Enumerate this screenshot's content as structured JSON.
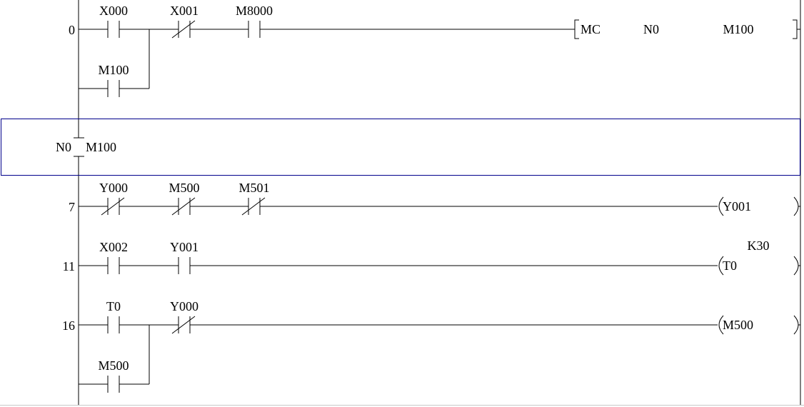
{
  "colors": {
    "line": "#000000",
    "selection": "#00008b",
    "bottom_border": "#c8c8c8"
  },
  "rungs": [
    {
      "step": "0",
      "contacts": [
        {
          "label": "X000",
          "type": "no",
          "col": 0
        },
        {
          "label": "X001",
          "type": "nc",
          "col": 1
        },
        {
          "label": "M8000",
          "type": "no",
          "col": 2
        }
      ],
      "branch": {
        "contacts": [
          {
            "label": "M100",
            "type": "no",
            "col": 0
          }
        ]
      },
      "instruction": {
        "op": "MC",
        "args": [
          "N0",
          "M100"
        ]
      }
    },
    {
      "mc_marker": {
        "nest": "N0",
        "device": "M100"
      },
      "selected": true
    },
    {
      "step": "7",
      "contacts": [
        {
          "label": "Y000",
          "type": "nc",
          "col": 0
        },
        {
          "label": "M500",
          "type": "nc",
          "col": 1
        },
        {
          "label": "M501",
          "type": "nc",
          "col": 2
        }
      ],
      "coil": {
        "device": "Y001"
      }
    },
    {
      "step": "11",
      "contacts": [
        {
          "label": "X002",
          "type": "no",
          "col": 0
        },
        {
          "label": "Y001",
          "type": "no",
          "col": 1
        }
      ],
      "coil": {
        "device": "T0",
        "setting": "K30"
      }
    },
    {
      "step": "16",
      "contacts": [
        {
          "label": "T0",
          "type": "no",
          "col": 0
        },
        {
          "label": "Y000",
          "type": "nc",
          "col": 1
        }
      ],
      "branch": {
        "contacts": [
          {
            "label": "M500",
            "type": "no",
            "col": 0
          }
        ]
      },
      "coil": {
        "device": "M500"
      }
    }
  ]
}
